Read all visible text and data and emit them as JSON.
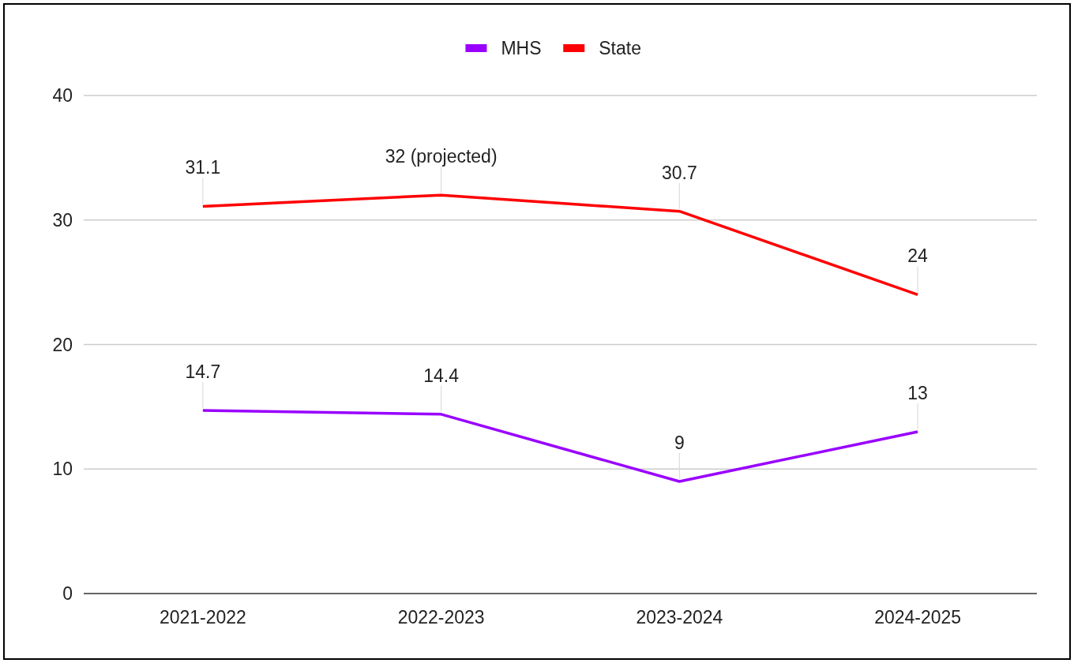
{
  "chart_data": {
    "type": "line",
    "categories": [
      "2021-2022",
      "2022-2023",
      "2023-2024",
      "2024-2025"
    ],
    "series": [
      {
        "name": "MHS",
        "color": "#9900ff",
        "values": [
          14.7,
          14.4,
          9,
          13
        ],
        "value_labels": [
          "14.7",
          "14.4",
          "9",
          "13"
        ]
      },
      {
        "name": "State",
        "color": "#ff0000",
        "values": [
          31.1,
          32,
          30.7,
          24
        ],
        "value_labels": [
          "31.1",
          "32 (projected)",
          "30.7",
          "24"
        ]
      }
    ],
    "ylim": [
      0,
      40
    ],
    "yticks": [
      0,
      10,
      20,
      30,
      40
    ],
    "grid": "y",
    "legend": "top"
  }
}
